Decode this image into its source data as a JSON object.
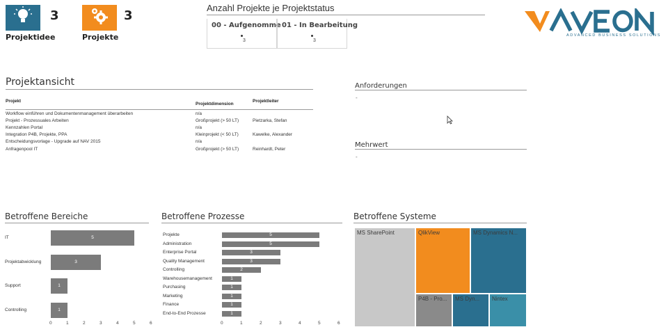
{
  "kpis": [
    {
      "label": "Projektidee",
      "value": "3",
      "icon": "lightbulb-icon",
      "color": "#2a6f8f"
    },
    {
      "label": "Projekte",
      "value": "3",
      "icon": "gears-icon",
      "color": "#f28c1e"
    }
  ],
  "status": {
    "title": "Anzahl Projekte je Projektstatus",
    "columns": [
      {
        "label": "00 - Aufgenomme",
        "value": "3"
      },
      {
        "label": "01 - In Bearbeitung",
        "value": "3"
      }
    ]
  },
  "logo": {
    "brand_text": "YAVEON",
    "tagline": "ADVANCED BUSINESS SOLUTIONS"
  },
  "project_view": {
    "title": "Projektansicht",
    "columns": [
      "Projekt",
      "Projektdimension",
      "Projektleiter"
    ],
    "rows": [
      {
        "project": "Workflow einführen und Dokumentenmanagement überarbeiten",
        "dimension": "n/a",
        "lead": ""
      },
      {
        "project": "Projekt - Prozessuales Arbeiten",
        "dimension": "Großprojekt (> 50 LT)",
        "lead": "Pietzarka, Stefan"
      },
      {
        "project": "Kennzahlen Portal",
        "dimension": "n/a",
        "lead": ""
      },
      {
        "project": "Integration P4B, Projekte, PPA",
        "dimension": "Kleinprojekt (< 50 LT)",
        "lead": "Kawelke, Alexander"
      },
      {
        "project": "Entscheidungsvorlage -  Upgrade auf NAV 2015",
        "dimension": "n/a",
        "lead": ""
      },
      {
        "project": "Anfragenpool IT",
        "dimension": "Großprojekt (> 50 LT)",
        "lead": "Reinhardt, Peter"
      }
    ]
  },
  "requirements": {
    "title": "Anforderungen",
    "value": "-"
  },
  "added_value": {
    "title": "Mehrwert",
    "value": "-"
  },
  "colors": {
    "bar": "#7b7b7b",
    "orange": "#f28c1e",
    "teal_dark": "#2a6f8f",
    "teal_light": "#3a8fa8",
    "gray_light": "#c8c8c8",
    "gray_dark": "#8a8a8a"
  },
  "chart_data": [
    {
      "type": "bar",
      "title": "Betroffene Bereiche",
      "categories": [
        "IT",
        "Projektabwicklung",
        "Support",
        "Controlling"
      ],
      "values": [
        5,
        3,
        1,
        1
      ],
      "xlim": [
        0,
        6
      ],
      "xticks": [
        "0",
        "1",
        "2",
        "3",
        "4",
        "5",
        "6"
      ],
      "orientation": "horizontal"
    },
    {
      "type": "bar",
      "title": "Betroffene Prozesse",
      "categories": [
        "Projekte",
        "Administration",
        "Enterprise Portal",
        "Quality Management",
        "Controlling",
        "Warehousemanagement",
        "Purchasing",
        "Marketing",
        "Finance",
        "End-to-End Prozesse"
      ],
      "values": [
        5,
        5,
        3,
        3,
        2,
        1,
        1,
        1,
        1,
        1
      ],
      "xlim": [
        0,
        6
      ],
      "xticks": [
        "0",
        "1",
        "2",
        "3",
        "4",
        "5",
        "6"
      ],
      "orientation": "horizontal"
    },
    {
      "type": "heatmap",
      "title": "Betroffene Systeme",
      "categories": [
        "MS SharePoint",
        "QlikView",
        "MS Dynamics N...",
        "P4B - Pro...",
        "MS Dyn...",
        "Nintex"
      ],
      "colors": [
        "#c8c8c8",
        "#f28c1e",
        "#2a6f8f",
        "#8a8a8a",
        "#2a6f8f",
        "#3a8fa8"
      ]
    }
  ]
}
